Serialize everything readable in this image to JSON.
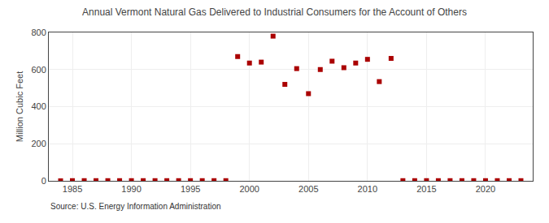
{
  "chart_data": {
    "type": "scatter",
    "title": "Annual Vermont Natural Gas Delivered to Industrial Consumers for the Account of Others",
    "ylabel": "Million Cubic Feet",
    "annotations": [
      "Source: U.S. Energy Information Administration"
    ],
    "x": [
      1984,
      1985,
      1986,
      1987,
      1988,
      1989,
      1990,
      1991,
      1992,
      1993,
      1994,
      1995,
      1996,
      1997,
      1998,
      1999,
      2000,
      2001,
      2002,
      2003,
      2004,
      2005,
      2006,
      2007,
      2008,
      2009,
      2010,
      2011,
      2012,
      2013,
      2014,
      2015,
      2016,
      2017,
      2018,
      2019,
      2020,
      2021,
      2022,
      2023
    ],
    "values": [
      0,
      1,
      1,
      1,
      1,
      1,
      1,
      1,
      1,
      1,
      1,
      1,
      1,
      1,
      1,
      670,
      635,
      640,
      780,
      520,
      605,
      470,
      600,
      645,
      610,
      635,
      655,
      535,
      660,
      1,
      1,
      1,
      1,
      1,
      1,
      1,
      1,
      1,
      1,
      1
    ],
    "color": "#aa0000",
    "marker": "square",
    "xlim": [
      1983,
      2024
    ],
    "xticks": [
      1985,
      1990,
      1995,
      2000,
      2005,
      2010,
      2015,
      2020
    ],
    "ylim": [
      0,
      800
    ],
    "yticks": [
      0,
      200,
      400,
      600,
      800
    ],
    "grid": true
  }
}
